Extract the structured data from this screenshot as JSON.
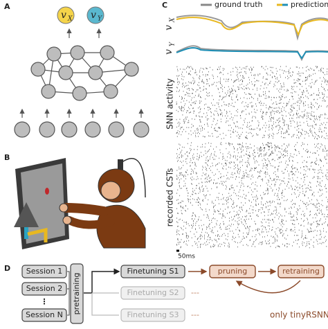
{
  "panels": {
    "a": {
      "label": "A",
      "outputs": [
        "v",
        "v"
      ],
      "subscripts": [
        "X",
        "Y"
      ]
    },
    "b": {
      "label": "B"
    },
    "c": {
      "label": "C",
      "legend": [
        "ground truth",
        "prediction"
      ],
      "traces": [
        "v",
        "v"
      ],
      "trace_subscripts": [
        "X",
        "Y"
      ],
      "rasters": [
        "SNN activity",
        "recorded CSTs"
      ],
      "scale_bar": "50ms"
    },
    "d": {
      "label": "D",
      "sessions": [
        "Session 1",
        "Session 2",
        "Session N"
      ],
      "ellipsis": "⋮",
      "pretraining": "pretraining",
      "finetuning": [
        "Finetuning S1",
        "Finetuning S2",
        "Finetuning S3"
      ],
      "pruning": "pruning",
      "retraining": "retraining",
      "dashes": [
        "---",
        "---"
      ],
      "note": "only tinyRSNN"
    }
  }
}
